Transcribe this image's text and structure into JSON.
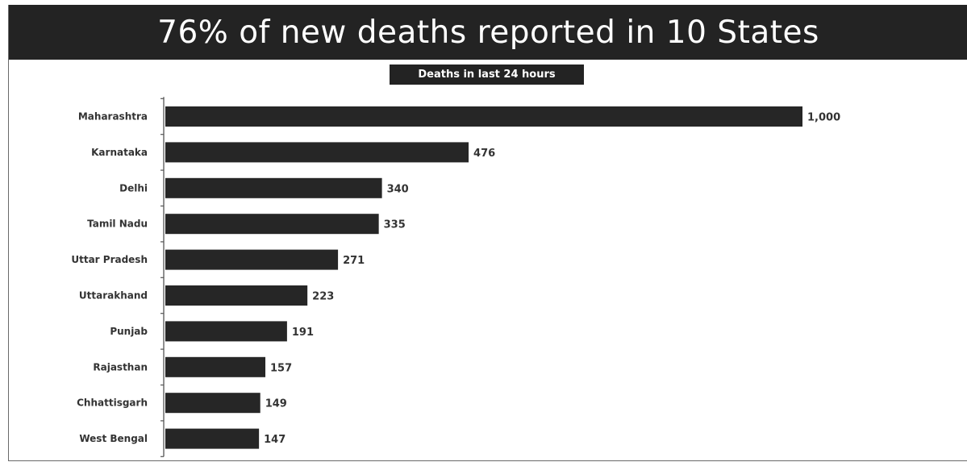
{
  "header": {
    "title": "76% of new deaths reported in 10 States"
  },
  "colors": {
    "banner": "#232323",
    "bar": "#262626",
    "text": "#333333"
  },
  "chart_data": {
    "type": "bar",
    "orientation": "horizontal",
    "title": "76% of new deaths reported in 10 States",
    "subtitle": "Deaths in last 24 hours",
    "xlabel": "",
    "ylabel": "",
    "grid": false,
    "legend": "none",
    "categories": [
      "Maharashtra",
      "Karnataka",
      "Delhi",
      "Tamil Nadu",
      "Uttar Pradesh",
      "Uttarakhand",
      "Punjab",
      "Rajasthan",
      "Chhattisgarh",
      "West Bengal"
    ],
    "values": [
      1000,
      476,
      340,
      335,
      271,
      223,
      191,
      157,
      149,
      147
    ],
    "value_labels": [
      "1,000",
      "476",
      "340",
      "335",
      "271",
      "223",
      "191",
      "157",
      "149",
      "147"
    ],
    "xlim": [
      0,
      1000
    ]
  }
}
